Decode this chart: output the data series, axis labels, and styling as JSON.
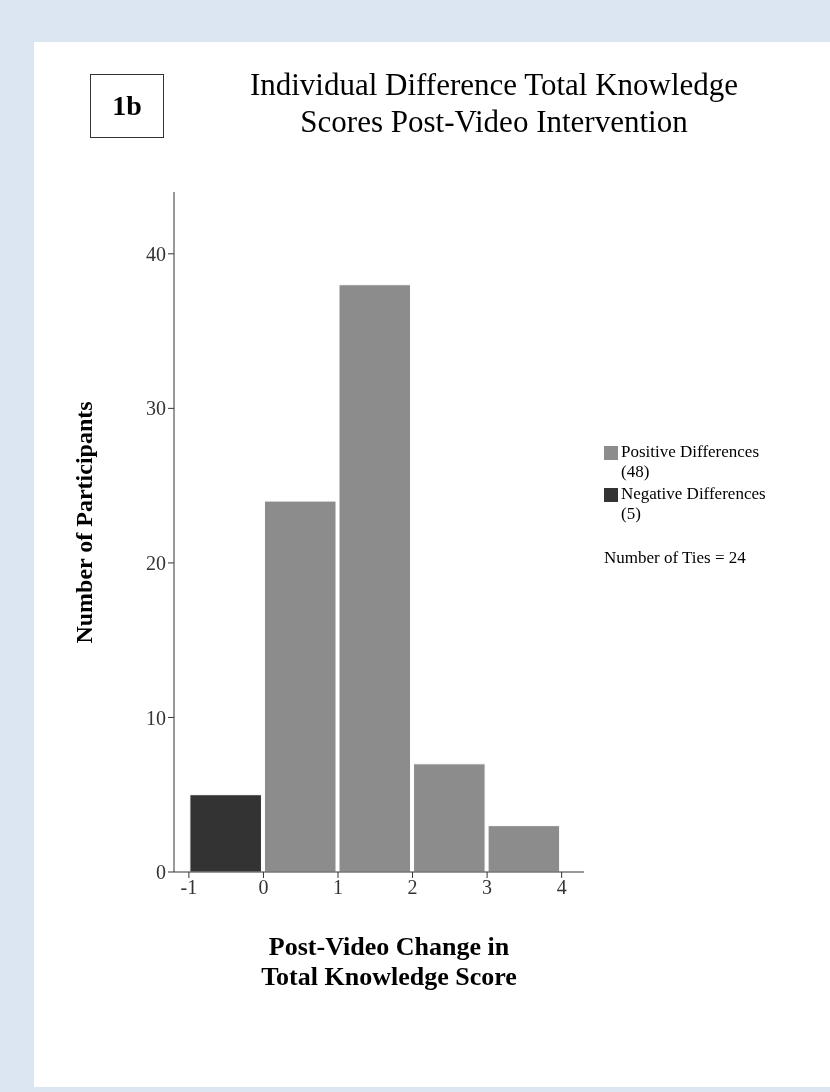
{
  "chart_data": {
    "type": "histogram",
    "title": "Individual Difference Total Knowledge\nScores Post-Video Intervention",
    "xlabel": "Post-Video Change in\nTotal Knowledge Score",
    "ylabel": "Number of Participants",
    "bins": [
      -1,
      0,
      1,
      2,
      3,
      4
    ],
    "series": [
      {
        "name": "Positive Differences (48)",
        "color": "#8c8c8c",
        "values": [
          null,
          24,
          38,
          7,
          3
        ]
      },
      {
        "name": "Negative Differences (5)",
        "color": "#333333",
        "values": [
          5,
          null,
          null,
          null,
          null
        ]
      }
    ],
    "xlim": [
      -1.2,
      4.3
    ],
    "xticks": [
      -1,
      0,
      1,
      2,
      3,
      4
    ],
    "ylim": [
      0,
      44
    ],
    "yticks": [
      0,
      10,
      20,
      30,
      40
    ],
    "grid": false,
    "legend": "right",
    "annotations": [
      "1b",
      "Number of Ties = 24"
    ]
  }
}
